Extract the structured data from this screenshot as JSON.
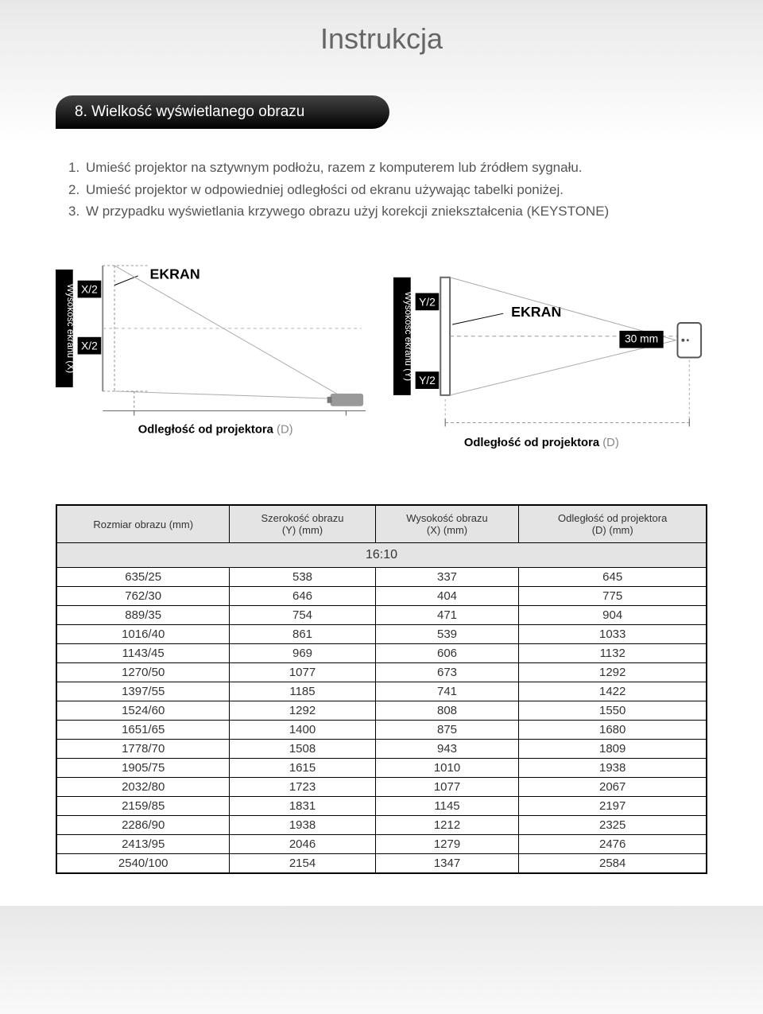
{
  "page_title": "Instrukcja",
  "section_header": "8. Wielkość wyświetlanego obrazu",
  "instructions": [
    {
      "num": "1.",
      "text": "Umieść projektor na sztywnym podłożu, razem z komputerem lub źródłem sygnału."
    },
    {
      "num": "2.",
      "text": "Umieść projektor w odpowiedniej odległości od ekranu używając tabelki poniżej."
    },
    {
      "num": "3.",
      "text": "W przypadku wyświetlania krzywego obrazu użyj korekcji zniekształcenia (KEYSTONE)"
    }
  ],
  "diagram_left": {
    "v_axis_label": "Wysokość ekranu (X)",
    "ekran_label": "EKRAN",
    "half_top": "X/2",
    "half_bottom": "X/2",
    "caption_bold": "Odległość od projektora",
    "caption_light": "(D)"
  },
  "diagram_right": {
    "v_axis_label": "Wysokość ekranu (Y)",
    "ekran_label": "EKRAN",
    "half_top": "Y/2",
    "half_bottom": "Y/2",
    "offset": "30 mm",
    "caption_bold": "Odległość od projektora",
    "caption_light": "(D)"
  },
  "table": {
    "ratio": "16:10",
    "columns": [
      "Rozmiar obrazu (mm)",
      "Szerokość obrazu\n(Y) (mm)",
      "Wysokość obrazu\n(X) (mm)",
      "Odległość od projektora\n(D) (mm)"
    ],
    "rows": [
      [
        "635/25",
        "538",
        "337",
        "645"
      ],
      [
        "762/30",
        "646",
        "404",
        "775"
      ],
      [
        "889/35",
        "754",
        "471",
        "904"
      ],
      [
        "1016/40",
        "861",
        "539",
        "1033"
      ],
      [
        "1143/45",
        "969",
        "606",
        "1132"
      ],
      [
        "1270/50",
        "1077",
        "673",
        "1292"
      ],
      [
        "1397/55",
        "1185",
        "741",
        "1422"
      ],
      [
        "1524/60",
        "1292",
        "808",
        "1550"
      ],
      [
        "1651/65",
        "1400",
        "875",
        "1680"
      ],
      [
        "1778/70",
        "1508",
        "943",
        "1809"
      ],
      [
        "1905/75",
        "1615",
        "1010",
        "1938"
      ],
      [
        "2032/80",
        "1723",
        "1077",
        "2067"
      ],
      [
        "2159/85",
        "1831",
        "1145",
        "2197"
      ],
      [
        "2286/90",
        "1938",
        "1212",
        "2325"
      ],
      [
        "2413/95",
        "2046",
        "1279",
        "2476"
      ],
      [
        "2540/100",
        "2154",
        "1347",
        "2584"
      ]
    ]
  }
}
